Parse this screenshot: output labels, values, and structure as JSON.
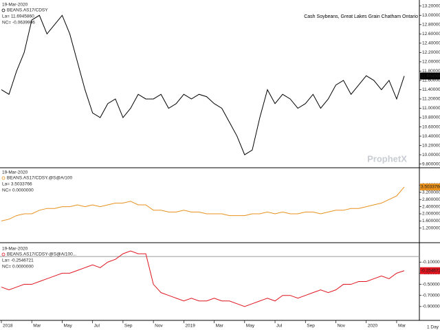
{
  "chart_data": {
    "type": "line",
    "title": "Cash Soybeans, Great Lakes Grain Chatham Ontario",
    "watermark": "ProphetX",
    "period": "1 Day",
    "categories": [
      "2018",
      null,
      null,
      null,
      "Mar",
      null,
      null,
      null,
      "May",
      null,
      null,
      null,
      "Jul",
      null,
      null,
      null,
      "Sep",
      null,
      null,
      null,
      "Nov",
      null,
      null,
      null,
      "2019",
      null,
      null,
      null,
      "Mar",
      null,
      null,
      null,
      "May",
      null,
      null,
      null,
      "Jul",
      null,
      null,
      null,
      "Sep",
      null,
      null,
      null,
      "Nov",
      null,
      null,
      null,
      "2020",
      null,
      null,
      null,
      "Mar",
      null
    ],
    "panels": [
      {
        "date": "19-Mar-2020",
        "last": "La= 11.6945860",
        "change": "NC= -0.0639906",
        "badge": "11.6945860",
        "badge_text_color": "#ffffff",
        "series": [
          {
            "name": "BEANS.AS17/CDSY",
            "color": "#000000",
            "values": [
              11.4,
              11.3,
              11.8,
              12.2,
              12.9,
              13.0,
              12.6,
              12.8,
              13.0,
              12.6,
              12.0,
              11.4,
              10.9,
              10.8,
              11.1,
              11.2,
              10.8,
              11.0,
              11.3,
              11.2,
              11.2,
              11.3,
              11.0,
              11.1,
              11.3,
              11.2,
              11.3,
              11.25,
              11.1,
              11.0,
              10.7,
              10.4,
              10.0,
              10.1,
              10.8,
              11.4,
              11.1,
              11.3,
              11.2,
              11.0,
              11.1,
              11.3,
              11.0,
              11.2,
              11.5,
              11.6,
              11.3,
              11.5,
              11.7,
              11.6,
              11.4,
              11.6,
              11.2,
              11.694586
            ]
          }
        ],
        "ylim": [
          9.75,
          13.3
        ],
        "yticks": [
          {
            "value": 13.2,
            "label": "13.2000000"
          },
          {
            "value": 13.0,
            "label": "13.0000000"
          },
          {
            "value": 12.8,
            "label": "12.8000000"
          },
          {
            "value": 12.6,
            "label": "12.6000000"
          },
          {
            "value": 12.4,
            "label": "12.4000000"
          },
          {
            "value": 12.2,
            "label": "12.2000000"
          },
          {
            "value": 12.0,
            "label": "12.0000000"
          },
          {
            "value": 11.8,
            "label": "11.8000000"
          },
          {
            "value": 11.6,
            "label": "11.6000000"
          },
          {
            "value": 11.4,
            "label": "11.4000000"
          },
          {
            "value": 11.2,
            "label": "11.2000000"
          },
          {
            "value": 11.0,
            "label": "11.0000000"
          },
          {
            "value": 10.8,
            "label": "10.8000000"
          },
          {
            "value": 10.6,
            "label": "10.6000000"
          },
          {
            "value": 10.4,
            "label": "10.4000000"
          },
          {
            "value": 10.2,
            "label": "10.2000000"
          },
          {
            "value": 10.0,
            "label": "10.0000000"
          },
          {
            "value": 9.8,
            "label": "9.8000000"
          }
        ],
        "zero_line": false
      },
      {
        "date": "19-Mar-2020",
        "last": "La= 3.5033766",
        "change": "NC= 0.0000000",
        "badge": "3.5033766",
        "badge_text_color": "#ffffff",
        "series": [
          {
            "name": "BEANS.AS17/CDSY.@S@A/100",
            "color": "#e8901c",
            "values": [
              1.6,
              1.7,
              1.9,
              2.0,
              2.0,
              2.2,
              2.3,
              2.3,
              2.4,
              2.4,
              2.5,
              2.4,
              2.5,
              2.4,
              2.5,
              2.6,
              2.6,
              2.7,
              2.5,
              2.5,
              2.2,
              2.2,
              2.1,
              2.1,
              2.2,
              2.1,
              2.1,
              2.0,
              2.0,
              2.0,
              1.9,
              1.9,
              1.9,
              2.0,
              2.0,
              2.1,
              2.0,
              2.1,
              2.0,
              2.0,
              2.1,
              2.1,
              2.0,
              2.1,
              2.2,
              2.2,
              2.3,
              2.3,
              2.4,
              2.5,
              2.6,
              2.8,
              3.0,
              3.5033766
            ]
          }
        ],
        "ylim": [
          0.5,
          4.5
        ],
        "yticks": [
          {
            "value": 3.6,
            "label": "3.6000000"
          },
          {
            "value": 3.2,
            "label": "3.2000000"
          },
          {
            "value": 2.8,
            "label": "2.8000000"
          },
          {
            "value": 2.4,
            "label": "2.4000000"
          },
          {
            "value": 2.0,
            "label": "2.0000000"
          },
          {
            "value": 1.6,
            "label": "1.6000000"
          },
          {
            "value": 1.2,
            "label": "1.2000000"
          }
        ],
        "zero_line": false
      },
      {
        "date": "19-Mar-2020",
        "last": "La= -0.2546721",
        "change": "NC= 0.0000000",
        "badge": "-0.2546721",
        "badge_text_color": "#ffffff",
        "series": [
          {
            "name": "BEANS.AS17/CDSY-@S@A/100...",
            "color": "#e0141e",
            "values": [
              -0.55,
              -0.6,
              -0.55,
              -0.5,
              -0.5,
              -0.45,
              -0.4,
              -0.35,
              -0.3,
              -0.3,
              -0.25,
              -0.2,
              -0.15,
              -0.2,
              -0.1,
              -0.05,
              0.05,
              0.1,
              0.05,
              0.05,
              -0.5,
              -0.65,
              -0.7,
              -0.75,
              -0.8,
              -0.75,
              -0.8,
              -0.8,
              -0.75,
              -0.8,
              -0.8,
              -0.85,
              -0.9,
              -0.85,
              -0.8,
              -0.75,
              -0.8,
              -0.7,
              -0.7,
              -0.75,
              -0.7,
              -0.65,
              -0.6,
              -0.65,
              -0.6,
              -0.5,
              -0.5,
              -0.45,
              -0.45,
              -0.4,
              -0.35,
              -0.4,
              -0.3,
              -0.2546721
            ]
          }
        ],
        "ylim": [
          -1.1,
          0.2
        ],
        "yticks": [
          {
            "value": -0.1,
            "label": "-0.1000000"
          },
          {
            "value": -0.3,
            "label": "-0.3000000"
          },
          {
            "value": -0.5,
            "label": "-0.5000000"
          },
          {
            "value": -0.7,
            "label": "-0.7000000"
          },
          {
            "value": -0.9,
            "label": "-0.9000000"
          }
        ],
        "zero_line": true
      }
    ]
  }
}
